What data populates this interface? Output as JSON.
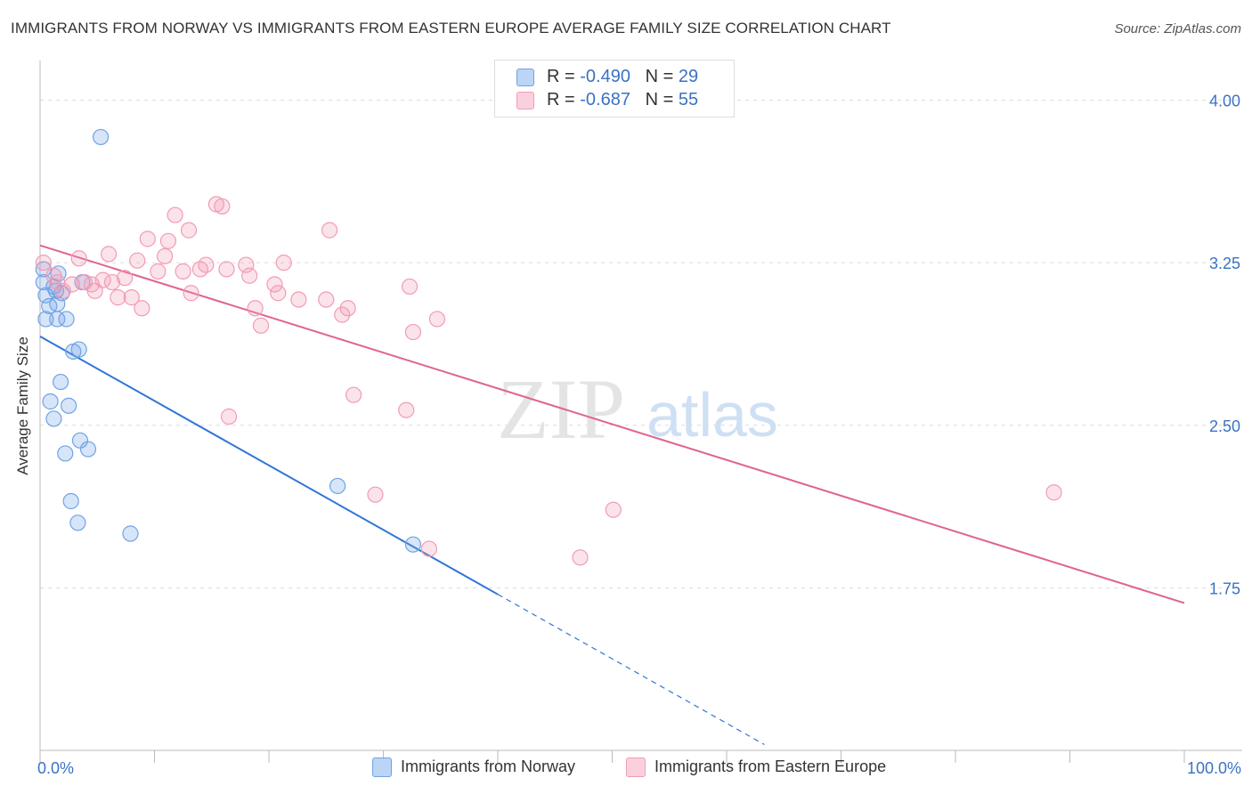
{
  "title": "IMMIGRANTS FROM NORWAY VS IMMIGRANTS FROM EASTERN EUROPE AVERAGE FAMILY SIZE CORRELATION CHART",
  "source": "Source: ZipAtlas.com",
  "watermark": {
    "zip": "ZIP",
    "atlas": "atlas"
  },
  "legend": {
    "row1": {
      "r_label": "R = ",
      "r_value": "-0.490",
      "n_label": "N = ",
      "n_value": "29"
    },
    "row2": {
      "r_label": "R = ",
      "r_value": "-0.687",
      "n_label": "N = ",
      "n_value": "55"
    }
  },
  "colors": {
    "norway": "#6fa3e6",
    "norway_line": "#2f75d6",
    "eastern_europe": "#f29bb5",
    "eastern_europe_line": "#e0628f",
    "tick_text": "#3a72c4"
  },
  "chart_data": {
    "type": "scatter",
    "ylabel": "Average Family Size",
    "xlim": [
      0,
      100
    ],
    "ylim": [
      1.0,
      4.15
    ],
    "x_tick_labels": [
      "0.0%",
      "100.0%"
    ],
    "y_ticks": [
      {
        "value": 4.0,
        "label": "4.00"
      },
      {
        "value": 3.25,
        "label": "3.25"
      },
      {
        "value": 2.5,
        "label": "2.50"
      },
      {
        "value": 1.75,
        "label": "1.75"
      }
    ],
    "grid": true,
    "series": [
      {
        "name": "Immigrants from Norway",
        "color": "#6fa3e6",
        "points": [
          [
            5.3,
            3.83
          ],
          [
            0.3,
            3.22
          ],
          [
            0.3,
            3.16
          ],
          [
            0.5,
            3.1
          ],
          [
            0.8,
            3.05
          ],
          [
            1.2,
            3.14
          ],
          [
            1.4,
            3.12
          ],
          [
            1.6,
            3.2
          ],
          [
            1.9,
            3.11
          ],
          [
            1.5,
            3.06
          ],
          [
            3.7,
            3.16
          ],
          [
            0.5,
            2.99
          ],
          [
            1.5,
            2.99
          ],
          [
            2.3,
            2.99
          ],
          [
            2.9,
            2.84
          ],
          [
            3.4,
            2.85
          ],
          [
            1.8,
            2.7
          ],
          [
            0.9,
            2.61
          ],
          [
            2.5,
            2.59
          ],
          [
            1.2,
            2.53
          ],
          [
            3.5,
            2.43
          ],
          [
            4.2,
            2.39
          ],
          [
            2.2,
            2.37
          ],
          [
            2.7,
            2.15
          ],
          [
            3.3,
            2.05
          ],
          [
            7.9,
            2.0
          ],
          [
            26.0,
            2.22
          ],
          [
            32.6,
            1.95
          ]
        ],
        "trend": {
          "x0": 0,
          "y0": 2.91,
          "x1": 40,
          "y1": 1.72,
          "dashed_to_x": 63.3
        }
      },
      {
        "name": "Immigrants from Eastern Europe",
        "color": "#f29bb5",
        "points": [
          [
            0.3,
            3.25
          ],
          [
            1.2,
            3.19
          ],
          [
            1.5,
            3.16
          ],
          [
            2.0,
            3.12
          ],
          [
            2.8,
            3.15
          ],
          [
            3.4,
            3.27
          ],
          [
            3.9,
            3.16
          ],
          [
            4.5,
            3.15
          ],
          [
            4.8,
            3.12
          ],
          [
            5.5,
            3.17
          ],
          [
            6.0,
            3.29
          ],
          [
            6.3,
            3.16
          ],
          [
            6.8,
            3.09
          ],
          [
            7.4,
            3.18
          ],
          [
            8.0,
            3.09
          ],
          [
            8.5,
            3.26
          ],
          [
            8.9,
            3.04
          ],
          [
            9.4,
            3.36
          ],
          [
            10.3,
            3.21
          ],
          [
            10.9,
            3.28
          ],
          [
            11.2,
            3.35
          ],
          [
            11.8,
            3.47
          ],
          [
            12.5,
            3.21
          ],
          [
            13.0,
            3.4
          ],
          [
            13.2,
            3.11
          ],
          [
            14.0,
            3.22
          ],
          [
            14.5,
            3.24
          ],
          [
            15.4,
            3.52
          ],
          [
            15.9,
            3.51
          ],
          [
            16.3,
            3.22
          ],
          [
            16.5,
            2.54
          ],
          [
            18.0,
            3.24
          ],
          [
            18.3,
            3.19
          ],
          [
            18.8,
            3.04
          ],
          [
            19.3,
            2.96
          ],
          [
            20.5,
            3.15
          ],
          [
            20.8,
            3.11
          ],
          [
            21.3,
            3.25
          ],
          [
            22.6,
            3.08
          ],
          [
            25.0,
            3.08
          ],
          [
            25.3,
            3.4
          ],
          [
            26.4,
            3.01
          ],
          [
            26.9,
            3.04
          ],
          [
            27.4,
            2.64
          ],
          [
            29.3,
            2.18
          ],
          [
            32.0,
            2.57
          ],
          [
            32.3,
            3.14
          ],
          [
            32.6,
            2.93
          ],
          [
            34.7,
            2.99
          ],
          [
            34.0,
            1.93
          ],
          [
            47.2,
            1.89
          ],
          [
            50.1,
            2.11
          ],
          [
            88.6,
            2.19
          ]
        ],
        "trend": {
          "x0": 0,
          "y0": 3.33,
          "x1": 100,
          "y1": 1.68
        }
      }
    ]
  }
}
